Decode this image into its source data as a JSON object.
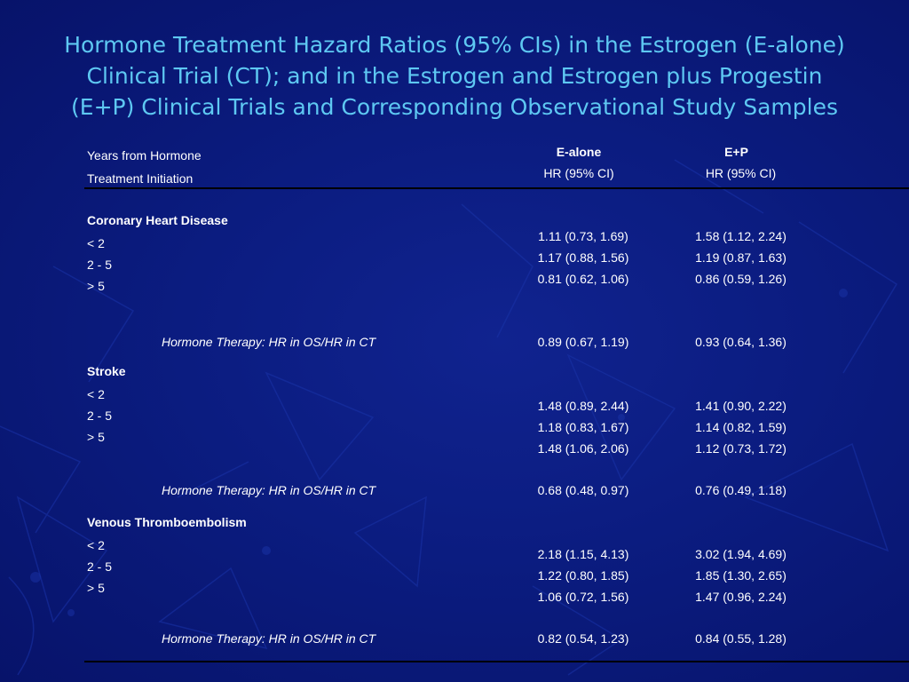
{
  "title": {
    "line1": "Hormone Treatment Hazard Ratios (95% CIs) in the Estrogen (E-alone)",
    "line2": "Clinical Trial (CT); and in the Estrogen and Estrogen plus Progestin",
    "line3": "(E+P) Clinical Trials and Corresponding Observational Study Samples"
  },
  "header": {
    "row_label_line1": "Years from Hormone",
    "row_label_line2": "Treatment Initiation",
    "col1_name": "E-alone",
    "col1_sub": "HR (95% CI)",
    "col2_name": "E+P",
    "col2_sub": "HR (95% CI)"
  },
  "sections": [
    {
      "name": "Coronary Heart Disease",
      "rows": [
        {
          "label": "< 2",
          "e_alone": "1.11 (0.73, 1.69)",
          "e_p": "1.58 (1.12, 2.24)"
        },
        {
          "label": "2 - 5",
          "e_alone": "1.17 (0.88, 1.56)",
          "e_p": "1.19 (0.87, 1.63)"
        },
        {
          "label": "> 5",
          "e_alone": "0.81 (0.62, 1.06)",
          "e_p": "0.86 (0.59, 1.26)"
        }
      ],
      "summary": {
        "label": "Hormone Therapy:  HR in OS/HR in CT",
        "e_alone": "0.89 (0.67, 1.19)",
        "e_p": "0.93 (0.64, 1.36)"
      }
    },
    {
      "name": "Stroke",
      "rows": [
        {
          "label": "< 2",
          "e_alone": "1.48 (0.89, 2.44)",
          "e_p": "1.41 (0.90, 2.22)"
        },
        {
          "label": "2 - 5",
          "e_alone": "1.18 (0.83, 1.67)",
          "e_p": "1.14 (0.82, 1.59)"
        },
        {
          "label": "> 5",
          "e_alone": "1.48 (1.06, 2.06)",
          "e_p": "1.12 (0.73, 1.72)"
        }
      ],
      "summary": {
        "label": "Hormone Therapy:  HR in OS/HR in CT",
        "e_alone": "0.68 (0.48, 0.97)",
        "e_p": "0.76 (0.49, 1.18)"
      }
    },
    {
      "name": "Venous Thromboembolism",
      "rows": [
        {
          "label": "< 2",
          "e_alone": "2.18 (1.15, 4.13)",
          "e_p": "3.02 (1.94, 4.69)"
        },
        {
          "label": "2 - 5",
          "e_alone": "1.22 (0.80, 1.85)",
          "e_p": "1.85 (1.30, 2.65)"
        },
        {
          "label": "> 5",
          "e_alone": "1.06 (0.72, 1.56)",
          "e_p": "1.47 (0.96, 2.24)"
        }
      ],
      "summary": {
        "label": "Hormone Therapy:  HR in OS/HR in CT",
        "e_alone": "0.82 (0.54, 1.23)",
        "e_p": "0.84 (0.55, 1.28)"
      }
    }
  ],
  "colors": {
    "background": "#0b1c80",
    "title": "#5ec8f2",
    "text": "#ffffff",
    "rule": "#000000"
  }
}
